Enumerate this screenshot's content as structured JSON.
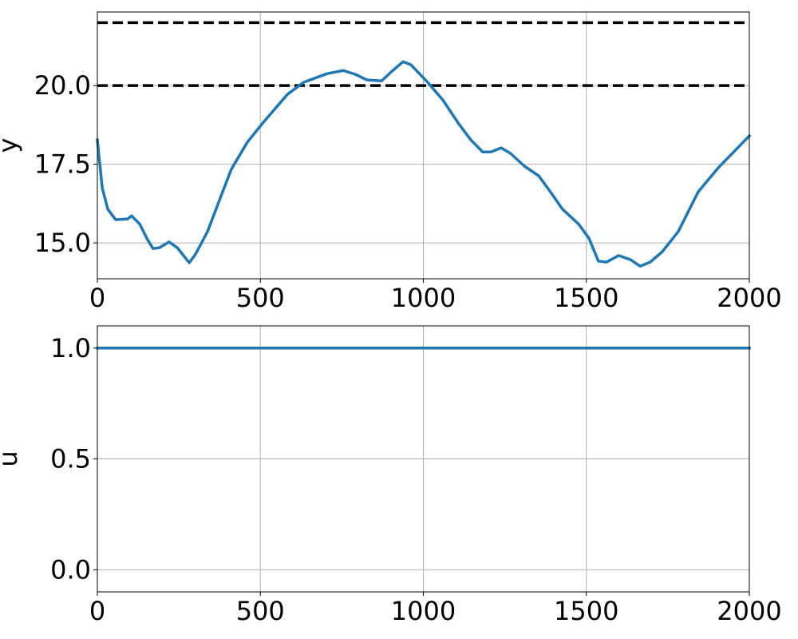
{
  "chart_data": [
    {
      "type": "line",
      "ylabel": "y",
      "x": [
        0,
        15,
        32,
        56,
        93,
        105,
        130,
        154,
        171,
        191,
        220,
        245,
        264,
        282,
        301,
        338,
        375,
        411,
        460,
        509,
        583,
        632,
        705,
        754,
        791,
        827,
        872,
        901,
        938,
        962,
        1011,
        1060,
        1109,
        1146,
        1182,
        1207,
        1239,
        1268,
        1310,
        1354,
        1390,
        1427,
        1476,
        1508,
        1537,
        1562,
        1599,
        1635,
        1665,
        1696,
        1733,
        1782,
        1843,
        1905,
        2000
      ],
      "series": [
        {
          "color": "#1f77b4",
          "values": [
            18.27,
            16.75,
            16.07,
            15.74,
            15.76,
            15.86,
            15.6,
            15.1,
            14.82,
            14.85,
            15.03,
            14.85,
            14.6,
            14.37,
            14.64,
            15.36,
            16.37,
            17.34,
            18.2,
            18.83,
            19.72,
            20.1,
            20.38,
            20.48,
            20.36,
            20.18,
            20.15,
            20.43,
            20.76,
            20.66,
            20.13,
            19.54,
            18.78,
            18.27,
            17.89,
            17.89,
            18.02,
            17.84,
            17.44,
            17.13,
            16.62,
            16.07,
            15.6,
            15.15,
            14.42,
            14.39,
            14.6,
            14.47,
            14.26,
            14.39,
            14.72,
            15.36,
            16.62,
            17.39,
            18.4
          ]
        }
      ],
      "reference_lines": [
        22,
        20
      ],
      "reference_color": "#000000",
      "xlim": [
        0,
        2000
      ],
      "xticks": [
        0,
        500,
        1000,
        1500,
        2000
      ],
      "ylim": [
        13.86,
        22.34
      ],
      "yticks": [
        {
          "value": 15,
          "label": "15.0"
        },
        17.5,
        {
          "value": 20,
          "label": "20.0"
        }
      ],
      "grid": true
    },
    {
      "type": "line",
      "ylabel": "u",
      "x": [
        0,
        2000
      ],
      "series": [
        {
          "color": "#1f77b4",
          "values": [
            1,
            1
          ]
        }
      ],
      "xlim": [
        0,
        2000
      ],
      "xticks": [
        0,
        500,
        1000,
        1500,
        2000
      ],
      "ylim": [
        -0.1,
        1.1
      ],
      "yticks": [
        {
          "value": 0,
          "label": "0.0"
        },
        0.5,
        {
          "value": 1,
          "label": "1.0"
        }
      ],
      "grid": true
    }
  ]
}
